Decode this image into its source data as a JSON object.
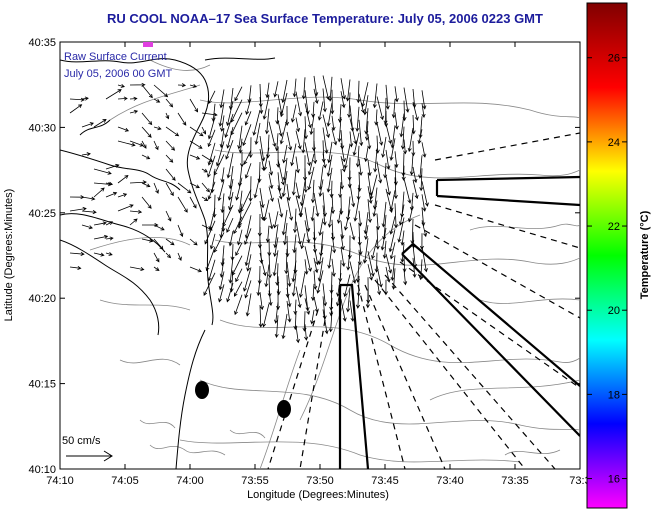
{
  "title": "RU COOL  NOAA–17  Sea Surface Temperature:  July 05, 2006 0223 GMT",
  "legend": {
    "line1": "Raw Surface Current",
    "line2": "July 05, 2006 00 GMT",
    "scale_label": "50 cm/s"
  },
  "x_axis": {
    "label": "Longitude (Degrees:Minutes)",
    "ticks": [
      "74:10",
      "74:05",
      "74:00",
      "73:55",
      "73:50",
      "73:45",
      "73:40",
      "73:35",
      "73:3"
    ]
  },
  "y_axis": {
    "label": "Latitude (Degrees:Minutes)",
    "ticks": [
      "40:35",
      "40:30",
      "40:25",
      "40:20",
      "40:15",
      "40:10"
    ]
  },
  "colorbar": {
    "label": "Temperature (°C)",
    "ticks": [
      "26",
      "24",
      "22",
      "20",
      "18",
      "16"
    ],
    "tick_values": [
      26,
      24,
      22,
      20,
      18,
      16
    ],
    "range": [
      15.3,
      27.3
    ],
    "colors": [
      "#ff00ff",
      "#8000ff",
      "#0000ff",
      "#0080ff",
      "#00ffff",
      "#00ff80",
      "#00ff00",
      "#80ff00",
      "#ffff00",
      "#ff8000",
      "#ff0000",
      "#c00000",
      "#800000"
    ]
  },
  "chart_data": {
    "type": "map",
    "x_range_deg_min": [
      "74:10",
      "73:30"
    ],
    "y_range_deg_min": [
      "40:10",
      "40:35"
    ],
    "features": [
      "coastline",
      "bathymetry contours",
      "surface current vectors",
      "dashed transect lines",
      "solid boundary polygons",
      "2 station markers"
    ]
  }
}
